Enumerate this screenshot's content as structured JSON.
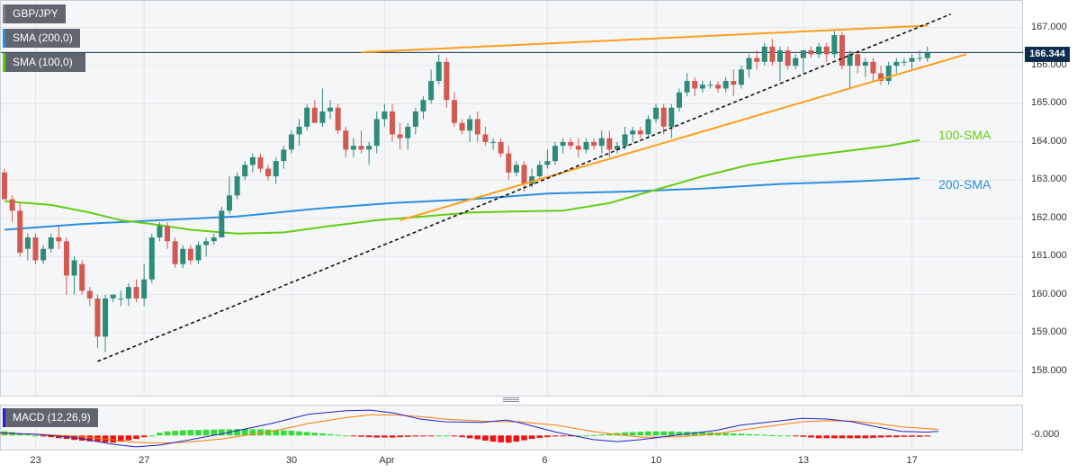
{
  "legend": {
    "symbol": "GBP/JPY",
    "sma200": "SMA (200,0)",
    "sma100": "SMA (100,0)",
    "macd": "MACD (12,26,9)"
  },
  "current_price": "166.344",
  "colors": {
    "up_candle": "#2e8b7a",
    "down_candle": "#d35a52",
    "sma100": "#66cc11",
    "sma200": "#2a8fe0",
    "trendline": "#ff9e1b",
    "support_dashed": "#111111",
    "macd_line": "#2222cc",
    "signal_line": "#ff7a00",
    "hist_pos": "#33dd33",
    "hist_neg": "#ee1111"
  },
  "chart_data": {
    "type": "candlestick",
    "title": "GBP/JPY",
    "y_axis_labels": [
      "167.000",
      "166.000",
      "165.000",
      "164.000",
      "163.000",
      "162.000",
      "161.000",
      "160.000",
      "159.000",
      "158.000"
    ],
    "ylim": [
      157.4,
      167.65
    ],
    "x_axis_labels": [
      "23",
      "27",
      "30",
      "Apr",
      "6",
      "10",
      "13",
      "17"
    ],
    "x_axis_label_slots": [
      4,
      18,
      37,
      49,
      70,
      84,
      103,
      117
    ],
    "annotations": {
      "sma100": "100-SMA",
      "sma200": "200-SMA"
    },
    "candles": [
      [
        163.2,
        163.3,
        162.5,
        162.5
      ],
      [
        162.5,
        162.6,
        161.9,
        162.2
      ],
      [
        162.2,
        162.4,
        161.0,
        161.1
      ],
      [
        161.2,
        161.6,
        160.9,
        161.5
      ],
      [
        161.5,
        161.6,
        160.8,
        160.9
      ],
      [
        160.9,
        161.3,
        160.8,
        161.2
      ],
      [
        161.2,
        161.6,
        161.1,
        161.5
      ],
      [
        161.5,
        161.8,
        161.2,
        161.4
      ],
      [
        161.4,
        161.5,
        160.0,
        160.5
      ],
      [
        160.5,
        161.0,
        160.0,
        160.9
      ],
      [
        160.8,
        160.9,
        160.0,
        160.1
      ],
      [
        160.1,
        160.2,
        159.7,
        159.9
      ],
      [
        159.9,
        160.0,
        158.6,
        158.9
      ],
      [
        158.9,
        160.0,
        158.5,
        159.9
      ],
      [
        159.9,
        160.0,
        159.8,
        160.0
      ],
      [
        159.9,
        160.1,
        159.7,
        159.9
      ],
      [
        159.9,
        160.3,
        159.7,
        160.2
      ],
      [
        160.2,
        160.4,
        159.8,
        159.9
      ],
      [
        159.9,
        160.8,
        159.7,
        160.4
      ],
      [
        160.4,
        161.6,
        160.3,
        161.5
      ],
      [
        161.5,
        161.9,
        161.4,
        161.8
      ],
      [
        161.8,
        161.9,
        161.2,
        161.4
      ],
      [
        161.4,
        161.5,
        160.7,
        160.8
      ],
      [
        160.8,
        161.3,
        160.7,
        161.2
      ],
      [
        161.2,
        161.3,
        160.8,
        160.9
      ],
      [
        160.9,
        161.4,
        160.8,
        161.3
      ],
      [
        161.3,
        161.5,
        161.0,
        161.4
      ],
      [
        161.4,
        161.6,
        161.3,
        161.5
      ],
      [
        161.5,
        162.3,
        161.5,
        162.2
      ],
      [
        162.2,
        163.1,
        162.1,
        162.6
      ],
      [
        162.6,
        163.2,
        162.5,
        163.1
      ],
      [
        163.1,
        163.5,
        163.0,
        163.4
      ],
      [
        163.4,
        163.7,
        163.2,
        163.6
      ],
      [
        163.6,
        163.7,
        163.2,
        163.3
      ],
      [
        163.3,
        163.4,
        163.0,
        163.1
      ],
      [
        163.1,
        163.6,
        162.9,
        163.5
      ],
      [
        163.5,
        163.9,
        163.3,
        163.8
      ],
      [
        163.8,
        164.3,
        163.7,
        164.2
      ],
      [
        164.2,
        164.6,
        163.9,
        164.4
      ],
      [
        164.4,
        165.0,
        164.3,
        164.9
      ],
      [
        164.9,
        165.1,
        164.5,
        164.5
      ],
      [
        164.5,
        165.4,
        164.4,
        164.8
      ],
      [
        164.8,
        165.1,
        164.6,
        164.9
      ],
      [
        164.9,
        165.0,
        164.2,
        164.3
      ],
      [
        164.3,
        164.4,
        163.6,
        163.8
      ],
      [
        163.8,
        164.1,
        163.6,
        163.9
      ],
      [
        163.9,
        164.3,
        163.7,
        163.8
      ],
      [
        163.8,
        164.0,
        163.4,
        163.9
      ],
      [
        163.9,
        164.8,
        163.7,
        164.6
      ],
      [
        164.6,
        165.0,
        164.4,
        164.8
      ],
      [
        164.8,
        165.0,
        164.0,
        164.2
      ],
      [
        164.2,
        164.5,
        163.8,
        164.1
      ],
      [
        164.1,
        164.5,
        163.8,
        164.4
      ],
      [
        164.4,
        164.9,
        164.2,
        164.8
      ],
      [
        164.8,
        165.2,
        164.6,
        165.1
      ],
      [
        165.1,
        165.9,
        165.0,
        165.6
      ],
      [
        165.6,
        166.3,
        165.5,
        166.1
      ],
      [
        166.1,
        166.2,
        164.9,
        165.1
      ],
      [
        165.1,
        165.3,
        164.4,
        164.5
      ],
      [
        164.5,
        164.6,
        164.2,
        164.3
      ],
      [
        164.3,
        164.7,
        164.0,
        164.6
      ],
      [
        164.6,
        164.8,
        164.0,
        164.2
      ],
      [
        164.2,
        164.4,
        163.9,
        164.0
      ],
      [
        164.0,
        164.1,
        163.8,
        164.0
      ],
      [
        164.0,
        164.1,
        163.6,
        163.7
      ],
      [
        163.7,
        163.9,
        163.0,
        163.2
      ],
      [
        163.2,
        163.5,
        163.1,
        163.4
      ],
      [
        163.4,
        163.5,
        162.7,
        162.9
      ],
      [
        162.9,
        163.3,
        162.8,
        163.1
      ],
      [
        163.1,
        163.5,
        163.0,
        163.4
      ],
      [
        163.4,
        163.8,
        163.3,
        163.5
      ],
      [
        163.5,
        164.0,
        163.4,
        163.9
      ],
      [
        163.9,
        164.1,
        163.7,
        164.0
      ],
      [
        164.0,
        164.1,
        163.8,
        163.9
      ],
      [
        163.9,
        164.1,
        163.6,
        163.8
      ],
      [
        163.8,
        164.1,
        163.7,
        164.0
      ],
      [
        164.0,
        164.1,
        163.8,
        163.9
      ],
      [
        163.9,
        164.3,
        163.7,
        164.1
      ],
      [
        164.1,
        164.3,
        163.6,
        163.8
      ],
      [
        163.8,
        164.0,
        163.7,
        163.9
      ],
      [
        163.9,
        164.4,
        163.8,
        164.2
      ],
      [
        164.2,
        164.4,
        164.0,
        164.3
      ],
      [
        164.3,
        164.4,
        164.1,
        164.2
      ],
      [
        164.2,
        164.7,
        164.1,
        164.6
      ],
      [
        164.6,
        165.0,
        164.5,
        164.9
      ],
      [
        164.9,
        165.0,
        164.2,
        164.4
      ],
      [
        164.4,
        165.0,
        164.1,
        164.9
      ],
      [
        164.9,
        165.4,
        164.8,
        165.3
      ],
      [
        165.3,
        165.8,
        165.2,
        165.6
      ],
      [
        165.6,
        165.7,
        165.2,
        165.4
      ],
      [
        165.4,
        165.6,
        165.3,
        165.5
      ],
      [
        165.5,
        165.6,
        165.4,
        165.5
      ],
      [
        165.5,
        165.6,
        165.3,
        165.4
      ],
      [
        165.4,
        165.7,
        165.3,
        165.6
      ],
      [
        165.6,
        165.9,
        165.2,
        165.5
      ],
      [
        165.5,
        166.0,
        165.4,
        165.9
      ],
      [
        165.9,
        166.3,
        165.7,
        166.2
      ],
      [
        166.2,
        166.4,
        165.9,
        166.1
      ],
      [
        166.1,
        166.6,
        166.0,
        166.5
      ],
      [
        166.5,
        166.7,
        166.0,
        166.1
      ],
      [
        166.1,
        166.5,
        165.6,
        166.4
      ],
      [
        166.4,
        166.5,
        165.9,
        166.0
      ],
      [
        166.0,
        166.3,
        165.9,
        166.2
      ],
      [
        166.2,
        166.3,
        165.8,
        166.4
      ],
      [
        166.4,
        166.5,
        166.2,
        166.3
      ],
      [
        166.3,
        166.6,
        166.2,
        166.5
      ],
      [
        166.5,
        166.6,
        166.1,
        166.3
      ],
      [
        166.3,
        166.9,
        166.2,
        166.8
      ],
      [
        166.8,
        166.9,
        165.9,
        166.0
      ],
      [
        166.0,
        166.4,
        165.4,
        166.3
      ],
      [
        166.3,
        166.4,
        165.8,
        166.0
      ],
      [
        166.0,
        166.2,
        165.7,
        166.1
      ],
      [
        166.1,
        166.2,
        165.6,
        165.8
      ],
      [
        165.8,
        166.0,
        165.5,
        165.6
      ],
      [
        165.6,
        166.1,
        165.5,
        166.0
      ],
      [
        166.0,
        166.2,
        165.8,
        166.1
      ],
      [
        166.1,
        166.2,
        166.0,
        166.1
      ],
      [
        166.1,
        166.3,
        165.9,
        166.2
      ],
      [
        166.2,
        166.4,
        166.1,
        166.2
      ],
      [
        166.2,
        166.5,
        166.1,
        166.344
      ]
    ],
    "sma100": [
      [
        0,
        162.45
      ],
      [
        6,
        162.35
      ],
      [
        11,
        162.15
      ],
      [
        15,
        161.95
      ],
      [
        19,
        161.85
      ],
      [
        24,
        161.7
      ],
      [
        30,
        161.6
      ],
      [
        36,
        161.63
      ],
      [
        42,
        161.8
      ],
      [
        48,
        161.95
      ],
      [
        54,
        162.05
      ],
      [
        60,
        162.15
      ],
      [
        66,
        162.18
      ],
      [
        72,
        162.2
      ],
      [
        78,
        162.4
      ],
      [
        84,
        162.75
      ],
      [
        90,
        163.1
      ],
      [
        96,
        163.4
      ],
      [
        102,
        163.6
      ],
      [
        108,
        163.75
      ],
      [
        114,
        163.9
      ],
      [
        118,
        164.05
      ]
    ],
    "sma200": [
      [
        0,
        161.7
      ],
      [
        10,
        161.85
      ],
      [
        20,
        161.95
      ],
      [
        30,
        162.05
      ],
      [
        40,
        162.25
      ],
      [
        50,
        162.4
      ],
      [
        60,
        162.5
      ],
      [
        70,
        162.65
      ],
      [
        80,
        162.7
      ],
      [
        90,
        162.78
      ],
      [
        100,
        162.9
      ],
      [
        110,
        162.97
      ],
      [
        118,
        163.05
      ]
    ],
    "trendlines": [
      {
        "style": "orange",
        "from": [
          46,
          166.35
        ],
        "to": [
          119,
          167.05
        ]
      },
      {
        "style": "orange",
        "from": [
          51,
          161.95
        ],
        "to": [
          124,
          166.3
        ]
      },
      {
        "style": "dashed",
        "from": [
          12,
          158.25
        ],
        "to": [
          122,
          167.35
        ]
      }
    ],
    "macd": {
      "label": "MACD (12,26,9)",
      "y_axis_labels": [
        "-0.000"
      ],
      "histogram": [
        0.12,
        0.1,
        0.06,
        0.03,
        0.0,
        -0.03,
        -0.05,
        -0.08,
        -0.1,
        -0.13,
        -0.15,
        -0.17,
        -0.18,
        -0.2,
        -0.21,
        -0.18,
        -0.14,
        -0.1,
        -0.05,
        0.0,
        0.08,
        0.12,
        0.14,
        0.15,
        0.16,
        0.16,
        0.17,
        0.17,
        0.18,
        0.18,
        0.19,
        0.19,
        0.18,
        0.18,
        0.17,
        0.16,
        0.15,
        0.14,
        0.12,
        0.1,
        0.08,
        0.06,
        0.04,
        0.02,
        0.0,
        -0.02,
        -0.04,
        -0.05,
        -0.06,
        -0.06,
        -0.06,
        -0.05,
        -0.04,
        -0.03,
        -0.02,
        -0.01,
        0.0,
        0.0,
        -0.02,
        -0.05,
        -0.08,
        -0.11,
        -0.15,
        -0.18,
        -0.2,
        -0.21,
        -0.18,
        -0.14,
        -0.1,
        -0.07,
        -0.05,
        -0.03,
        -0.02,
        -0.01,
        0.0,
        0.0,
        0.01,
        0.03,
        0.05,
        0.07,
        0.09,
        0.1,
        0.11,
        0.12,
        0.12,
        0.12,
        0.12,
        0.11,
        0.11,
        0.1,
        0.1,
        0.09,
        0.08,
        0.07,
        0.06,
        0.05,
        0.04,
        0.03,
        0.02,
        0.01,
        0.0,
        0.0,
        -0.02,
        -0.04,
        -0.06,
        -0.08,
        -0.08,
        -0.08,
        -0.08,
        -0.08,
        -0.08,
        -0.08,
        -0.07,
        -0.06,
        -0.05,
        -0.05,
        -0.04,
        -0.04,
        -0.04,
        -0.03
      ],
      "macd_line": [
        [
          0,
          0.08
        ],
        [
          6,
          0.03
        ],
        [
          12,
          -0.05
        ],
        [
          18,
          -0.25
        ],
        [
          22,
          -0.33
        ],
        [
          26,
          -0.28
        ],
        [
          30,
          -0.15
        ],
        [
          36,
          0.05
        ],
        [
          44,
          0.35
        ],
        [
          50,
          0.62
        ],
        [
          56,
          0.72
        ],
        [
          60,
          0.74
        ],
        [
          64,
          0.65
        ],
        [
          68,
          0.48
        ],
        [
          72,
          0.4
        ],
        [
          78,
          0.38
        ],
        [
          82,
          0.45
        ],
        [
          84,
          0.38
        ],
        [
          90,
          0.1
        ],
        [
          96,
          -0.12
        ],
        [
          100,
          -0.18
        ],
        [
          104,
          -0.12
        ],
        [
          110,
          0.02
        ],
        [
          116,
          0.15
        ],
        [
          120,
          0.3
        ],
        [
          126,
          0.42
        ],
        [
          130,
          0.5
        ],
        [
          134,
          0.48
        ],
        [
          138,
          0.4
        ],
        [
          142,
          0.25
        ],
        [
          146,
          0.12
        ],
        [
          150,
          0.1
        ],
        [
          152,
          0.12
        ]
      ],
      "signal_line": [
        [
          0,
          0.06
        ],
        [
          6,
          0.04
        ],
        [
          12,
          -0.02
        ],
        [
          18,
          -0.12
        ],
        [
          22,
          -0.2
        ],
        [
          26,
          -0.22
        ],
        [
          30,
          -0.2
        ],
        [
          36,
          -0.1
        ],
        [
          44,
          0.12
        ],
        [
          50,
          0.35
        ],
        [
          56,
          0.52
        ],
        [
          60,
          0.6
        ],
        [
          64,
          0.6
        ],
        [
          68,
          0.55
        ],
        [
          72,
          0.48
        ],
        [
          78,
          0.42
        ],
        [
          82,
          0.4
        ],
        [
          84,
          0.4
        ],
        [
          90,
          0.3
        ],
        [
          96,
          0.12
        ],
        [
          100,
          0.02
        ],
        [
          104,
          -0.05
        ],
        [
          110,
          -0.04
        ],
        [
          116,
          0.05
        ],
        [
          120,
          0.16
        ],
        [
          126,
          0.3
        ],
        [
          130,
          0.4
        ],
        [
          134,
          0.43
        ],
        [
          138,
          0.42
        ],
        [
          142,
          0.35
        ],
        [
          146,
          0.25
        ],
        [
          150,
          0.2
        ],
        [
          152,
          0.18
        ]
      ],
      "ylim": [
        -0.36,
        0.82
      ]
    }
  }
}
